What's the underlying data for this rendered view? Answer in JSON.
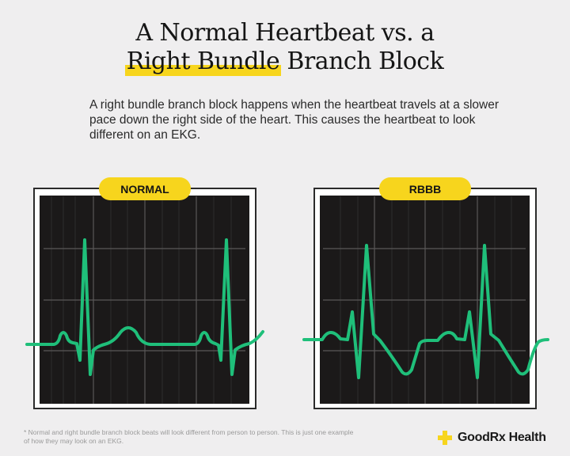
{
  "title": {
    "line1": "A Normal Heartbeat vs. a",
    "line2_highlight": "Right Bundle",
    "line2_rest": " Branch Block"
  },
  "description": "A right bundle branch block happens when the heartbeat travels at a slower pace down the right side of the heart. This causes the heartbeat to look different on an EKG.",
  "panels": [
    {
      "label": "NORMAL"
    },
    {
      "label": "RBBB"
    }
  ],
  "footnote": "* Normal and right bundle branch block beats will look different from person to person. This is just one example of how they may look on an EKG.",
  "brand": {
    "name": "GoodRx Health",
    "icon": "plus-cross-icon"
  },
  "colors": {
    "accent_yellow": "#f7d51d",
    "trace_green": "#1fbf7a",
    "screen": "#1b1919",
    "background": "#efeeef"
  }
}
